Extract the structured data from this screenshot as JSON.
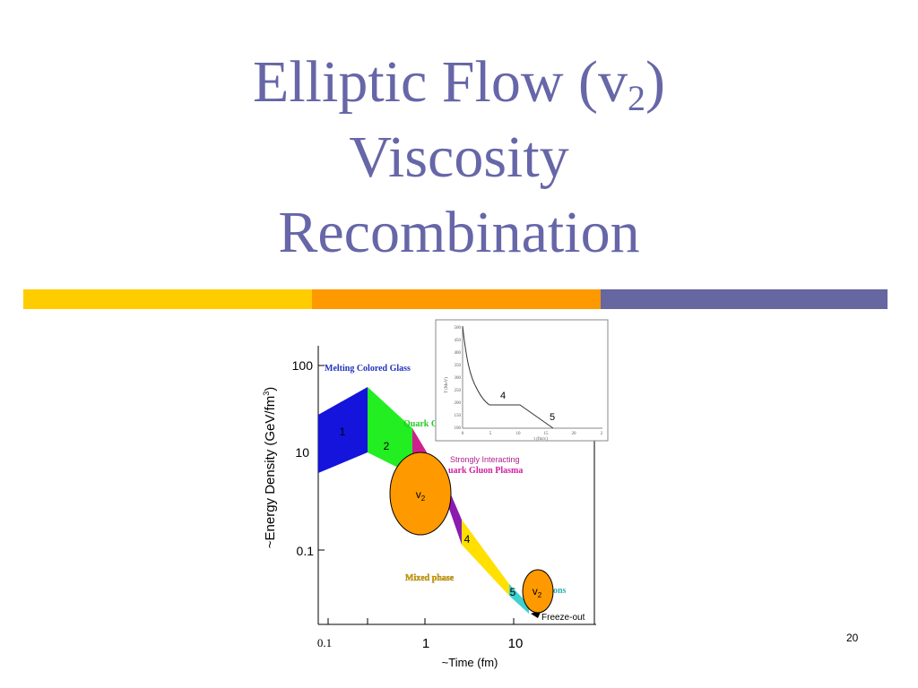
{
  "slide": {
    "title_line1_text": "Elliptic Flow (v",
    "title_line1_sub": "2",
    "title_line1_close": ")",
    "title_line2": "Viscosity",
    "title_line3": "Recombination",
    "slide_number": "20",
    "accent_colors": {
      "yellow": "#ffcc00",
      "orange": "#ff9900",
      "purple": "#6666a0"
    }
  },
  "figure": {
    "y_axis_label": "~Energy  Density (GeV/fm",
    "y_axis_label_sup": "3",
    "y_axis_label_close": ")",
    "y_ticks": [
      "100",
      "10",
      "0.1"
    ],
    "x_axis_label": "~Time (fm)",
    "x_ticks": [
      "0.1",
      "1",
      "10"
    ],
    "region_labels": {
      "melting_glass": "Melting Colored Glass",
      "quark_cut": "Quark C",
      "strongly_interacting": "Strongly Interacting",
      "qgp": "uark Gluon Plasma",
      "mixed_phase": "Mixed phase",
      "hadrons_cut": "ons",
      "freeze_out": "Freeze-out"
    },
    "stage_numbers": [
      "1",
      "2",
      "4",
      "5"
    ],
    "v2_symbol": "v",
    "v2_sub": "2",
    "inset": {
      "y_label": "T (MeV)",
      "x_label": "τ (fm/c)",
      "y_ticks": [
        "500",
        "450",
        "400",
        "350",
        "300",
        "250",
        "200",
        "150",
        "100"
      ],
      "x_ticks": [
        "0",
        "5",
        "10",
        "15",
        "20",
        "2"
      ],
      "stage_4": "4",
      "stage_5": "5"
    }
  }
}
